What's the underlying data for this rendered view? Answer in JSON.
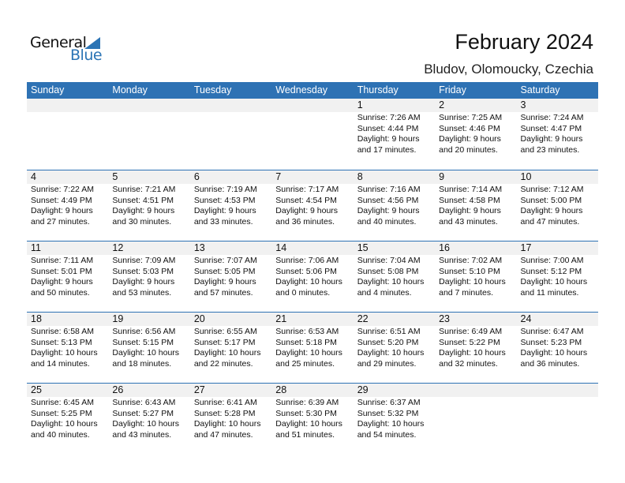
{
  "logo": {
    "line1": "General",
    "line2": "Blue"
  },
  "header": {
    "title": "February 2024",
    "location": "Bludov, Olomoucky, Czechia"
  },
  "days": [
    "Sunday",
    "Monday",
    "Tuesday",
    "Wednesday",
    "Thursday",
    "Friday",
    "Saturday"
  ],
  "weeks": [
    [
      null,
      null,
      null,
      null,
      {
        "day": "1",
        "sunrise": "Sunrise: 7:26 AM",
        "sunset": "Sunset: 4:44 PM",
        "daylight": "Daylight: 9 hours",
        "minutes": "and 17 minutes."
      },
      {
        "day": "2",
        "sunrise": "Sunrise: 7:25 AM",
        "sunset": "Sunset: 4:46 PM",
        "daylight": "Daylight: 9 hours",
        "minutes": "and 20 minutes."
      },
      {
        "day": "3",
        "sunrise": "Sunrise: 7:24 AM",
        "sunset": "Sunset: 4:47 PM",
        "daylight": "Daylight: 9 hours",
        "minutes": "and 23 minutes."
      }
    ],
    [
      {
        "day": "4",
        "sunrise": "Sunrise: 7:22 AM",
        "sunset": "Sunset: 4:49 PM",
        "daylight": "Daylight: 9 hours",
        "minutes": "and 27 minutes."
      },
      {
        "day": "5",
        "sunrise": "Sunrise: 7:21 AM",
        "sunset": "Sunset: 4:51 PM",
        "daylight": "Daylight: 9 hours",
        "minutes": "and 30 minutes."
      },
      {
        "day": "6",
        "sunrise": "Sunrise: 7:19 AM",
        "sunset": "Sunset: 4:53 PM",
        "daylight": "Daylight: 9 hours",
        "minutes": "and 33 minutes."
      },
      {
        "day": "7",
        "sunrise": "Sunrise: 7:17 AM",
        "sunset": "Sunset: 4:54 PM",
        "daylight": "Daylight: 9 hours",
        "minutes": "and 36 minutes."
      },
      {
        "day": "8",
        "sunrise": "Sunrise: 7:16 AM",
        "sunset": "Sunset: 4:56 PM",
        "daylight": "Daylight: 9 hours",
        "minutes": "and 40 minutes."
      },
      {
        "day": "9",
        "sunrise": "Sunrise: 7:14 AM",
        "sunset": "Sunset: 4:58 PM",
        "daylight": "Daylight: 9 hours",
        "minutes": "and 43 minutes."
      },
      {
        "day": "10",
        "sunrise": "Sunrise: 7:12 AM",
        "sunset": "Sunset: 5:00 PM",
        "daylight": "Daylight: 9 hours",
        "minutes": "and 47 minutes."
      }
    ],
    [
      {
        "day": "11",
        "sunrise": "Sunrise: 7:11 AM",
        "sunset": "Sunset: 5:01 PM",
        "daylight": "Daylight: 9 hours",
        "minutes": "and 50 minutes."
      },
      {
        "day": "12",
        "sunrise": "Sunrise: 7:09 AM",
        "sunset": "Sunset: 5:03 PM",
        "daylight": "Daylight: 9 hours",
        "minutes": "and 53 minutes."
      },
      {
        "day": "13",
        "sunrise": "Sunrise: 7:07 AM",
        "sunset": "Sunset: 5:05 PM",
        "daylight": "Daylight: 9 hours",
        "minutes": "and 57 minutes."
      },
      {
        "day": "14",
        "sunrise": "Sunrise: 7:06 AM",
        "sunset": "Sunset: 5:06 PM",
        "daylight": "Daylight: 10 hours",
        "minutes": "and 0 minutes."
      },
      {
        "day": "15",
        "sunrise": "Sunrise: 7:04 AM",
        "sunset": "Sunset: 5:08 PM",
        "daylight": "Daylight: 10 hours",
        "minutes": "and 4 minutes."
      },
      {
        "day": "16",
        "sunrise": "Sunrise: 7:02 AM",
        "sunset": "Sunset: 5:10 PM",
        "daylight": "Daylight: 10 hours",
        "minutes": "and 7 minutes."
      },
      {
        "day": "17",
        "sunrise": "Sunrise: 7:00 AM",
        "sunset": "Sunset: 5:12 PM",
        "daylight": "Daylight: 10 hours",
        "minutes": "and 11 minutes."
      }
    ],
    [
      {
        "day": "18",
        "sunrise": "Sunrise: 6:58 AM",
        "sunset": "Sunset: 5:13 PM",
        "daylight": "Daylight: 10 hours",
        "minutes": "and 14 minutes."
      },
      {
        "day": "19",
        "sunrise": "Sunrise: 6:56 AM",
        "sunset": "Sunset: 5:15 PM",
        "daylight": "Daylight: 10 hours",
        "minutes": "and 18 minutes."
      },
      {
        "day": "20",
        "sunrise": "Sunrise: 6:55 AM",
        "sunset": "Sunset: 5:17 PM",
        "daylight": "Daylight: 10 hours",
        "minutes": "and 22 minutes."
      },
      {
        "day": "21",
        "sunrise": "Sunrise: 6:53 AM",
        "sunset": "Sunset: 5:18 PM",
        "daylight": "Daylight: 10 hours",
        "minutes": "and 25 minutes."
      },
      {
        "day": "22",
        "sunrise": "Sunrise: 6:51 AM",
        "sunset": "Sunset: 5:20 PM",
        "daylight": "Daylight: 10 hours",
        "minutes": "and 29 minutes."
      },
      {
        "day": "23",
        "sunrise": "Sunrise: 6:49 AM",
        "sunset": "Sunset: 5:22 PM",
        "daylight": "Daylight: 10 hours",
        "minutes": "and 32 minutes."
      },
      {
        "day": "24",
        "sunrise": "Sunrise: 6:47 AM",
        "sunset": "Sunset: 5:23 PM",
        "daylight": "Daylight: 10 hours",
        "minutes": "and 36 minutes."
      }
    ],
    [
      {
        "day": "25",
        "sunrise": "Sunrise: 6:45 AM",
        "sunset": "Sunset: 5:25 PM",
        "daylight": "Daylight: 10 hours",
        "minutes": "and 40 minutes."
      },
      {
        "day": "26",
        "sunrise": "Sunrise: 6:43 AM",
        "sunset": "Sunset: 5:27 PM",
        "daylight": "Daylight: 10 hours",
        "minutes": "and 43 minutes."
      },
      {
        "day": "27",
        "sunrise": "Sunrise: 6:41 AM",
        "sunset": "Sunset: 5:28 PM",
        "daylight": "Daylight: 10 hours",
        "minutes": "and 47 minutes."
      },
      {
        "day": "28",
        "sunrise": "Sunrise: 6:39 AM",
        "sunset": "Sunset: 5:30 PM",
        "daylight": "Daylight: 10 hours",
        "minutes": "and 51 minutes."
      },
      {
        "day": "29",
        "sunrise": "Sunrise: 6:37 AM",
        "sunset": "Sunset: 5:32 PM",
        "daylight": "Daylight: 10 hours",
        "minutes": "and 54 minutes."
      },
      null,
      null
    ]
  ]
}
